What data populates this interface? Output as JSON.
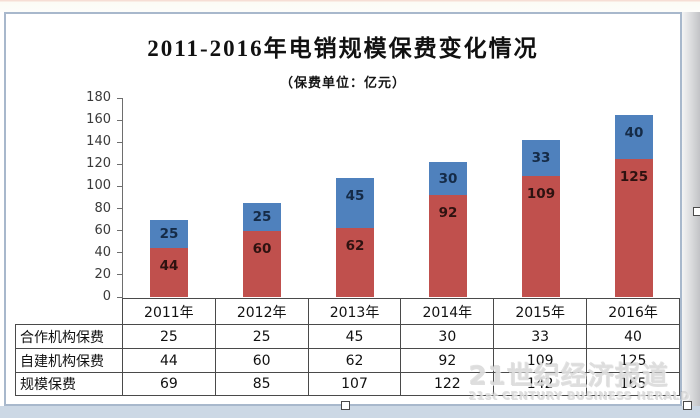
{
  "chart_data": {
    "type": "bar",
    "stacked": true,
    "title": "2011-2016年电销规模保费变化情况",
    "subtitle": "（保费单位：亿元）",
    "categories": [
      "2011年",
      "2012年",
      "2013年",
      "2014年",
      "2015年",
      "2016年"
    ],
    "series": [
      {
        "name": "自建机构保费",
        "stack_position": "bottom",
        "color": "#C0504D",
        "label_color": "#2e1210",
        "values": [
          44,
          60,
          62,
          92,
          109,
          125
        ]
      },
      {
        "name": "合作机构保费",
        "stack_position": "top",
        "color": "#4F81BD",
        "label_color": "#152b47",
        "values": [
          25,
          25,
          45,
          30,
          33,
          40
        ]
      }
    ],
    "totals": {
      "name": "规模保费",
      "values": [
        69,
        85,
        107,
        122,
        142,
        165
      ]
    },
    "ylim": [
      0,
      180
    ],
    "ytick_step": 20,
    "grid": false,
    "legend_position": "none"
  },
  "table": {
    "rows": [
      {
        "label": "合作机构保费",
        "values": [
          25,
          25,
          45,
          30,
          33,
          40
        ]
      },
      {
        "label": "自建机构保费",
        "values": [
          44,
          60,
          62,
          92,
          109,
          125
        ]
      },
      {
        "label": "规模保费",
        "values": [
          69,
          85,
          107,
          122,
          142,
          165
        ]
      }
    ]
  },
  "watermark": {
    "line1": "21世纪经济报道",
    "line2": "21st CENTURY BUSINESS HERALD"
  },
  "colors": {
    "red_series": "#C0504D",
    "blue_series": "#4F81BD",
    "axis": "#6e6e6e",
    "table_border": "#4a4a4a",
    "panel_border": "#a8b8cc",
    "bottom_strip": "#ccd8e5"
  }
}
